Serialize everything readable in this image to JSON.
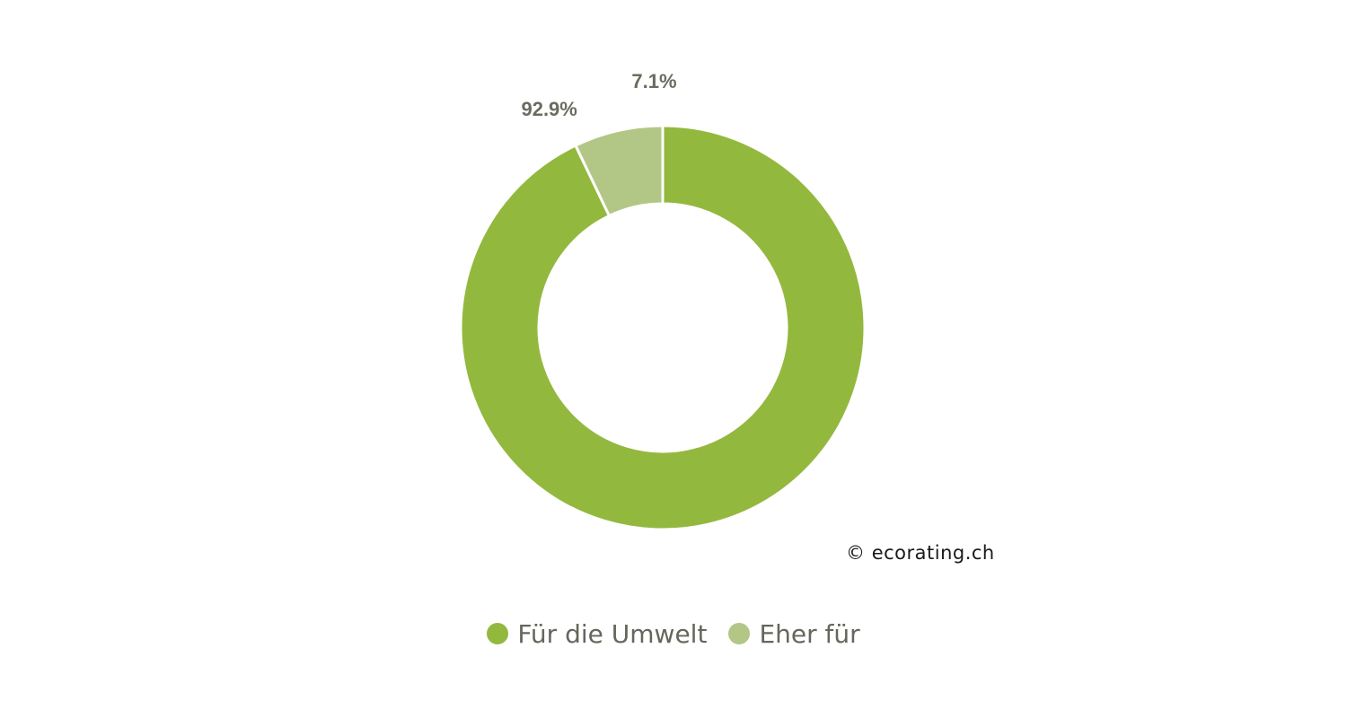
{
  "chart_data": {
    "type": "pie",
    "categories": [
      "Für die Umwelt",
      "Eher für"
    ],
    "values": [
      92.9,
      7.1
    ],
    "value_labels": [
      "92.9%",
      "7.1%"
    ],
    "colors": [
      "#93b83e",
      "#b2c786"
    ],
    "donut": true,
    "legend_position": "bottom-center"
  },
  "copyright": {
    "symbol": "©",
    "text": "ecorating.ch"
  },
  "legend": {
    "items": [
      {
        "label": "Für die Umwelt",
        "color": "#93b83e"
      },
      {
        "label": "Eher für",
        "color": "#b2c786"
      }
    ]
  }
}
